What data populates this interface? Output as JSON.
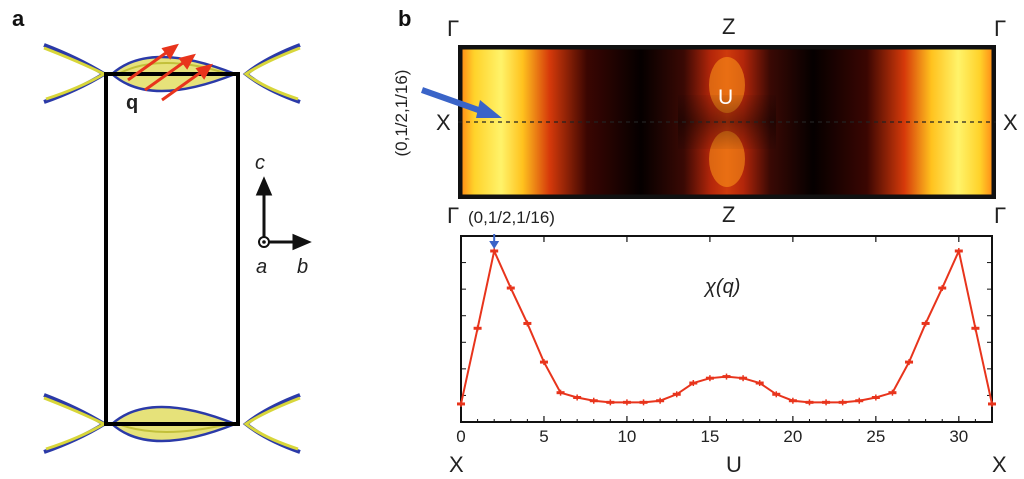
{
  "panel_a": {
    "label": "a",
    "q_label": "q",
    "axis_c": "c",
    "axis_a": "a",
    "axis_b": "b"
  },
  "panel_b": {
    "label": "b",
    "heatmap": {
      "corner_tl": "Γ",
      "top_mid": "Z",
      "corner_tr": "Γ",
      "left_x": "X",
      "right_x": "X",
      "center": "U",
      "vertical_label": "(0,1/2,1/16)"
    },
    "plot": {
      "corner_tl": "Γ",
      "top_mid": "Z",
      "corner_tr": "Γ",
      "peak_annotation": "(0,1/2,1/16)",
      "bottom_left": "X",
      "bottom_mid": "U",
      "bottom_right": "X",
      "series_label": "χ(q)"
    }
  },
  "chart_data": {
    "type": "line",
    "title": "",
    "xlabel": "",
    "ylabel": "",
    "xlim": [
      0,
      32
    ],
    "x_ticks": [
      "0",
      "5",
      "10",
      "15",
      "20",
      "25",
      "30"
    ],
    "grid": false,
    "series": [
      {
        "name": "χ(q)",
        "color": "#e8341c",
        "x": [
          0,
          1,
          2,
          3,
          4,
          5,
          6,
          7,
          8,
          9,
          10,
          11,
          12,
          13,
          14,
          15,
          16,
          17,
          18,
          19,
          20,
          21,
          22,
          23,
          24,
          25,
          26,
          27,
          28,
          29,
          30,
          31,
          32
        ],
        "y": [
          0.05,
          0.52,
          1.0,
          0.77,
          0.55,
          0.31,
          0.12,
          0.09,
          0.07,
          0.06,
          0.06,
          0.06,
          0.07,
          0.11,
          0.18,
          0.21,
          0.22,
          0.21,
          0.18,
          0.11,
          0.07,
          0.06,
          0.06,
          0.06,
          0.07,
          0.09,
          0.12,
          0.31,
          0.55,
          0.77,
          1.0,
          0.52,
          0.05
        ]
      }
    ]
  }
}
